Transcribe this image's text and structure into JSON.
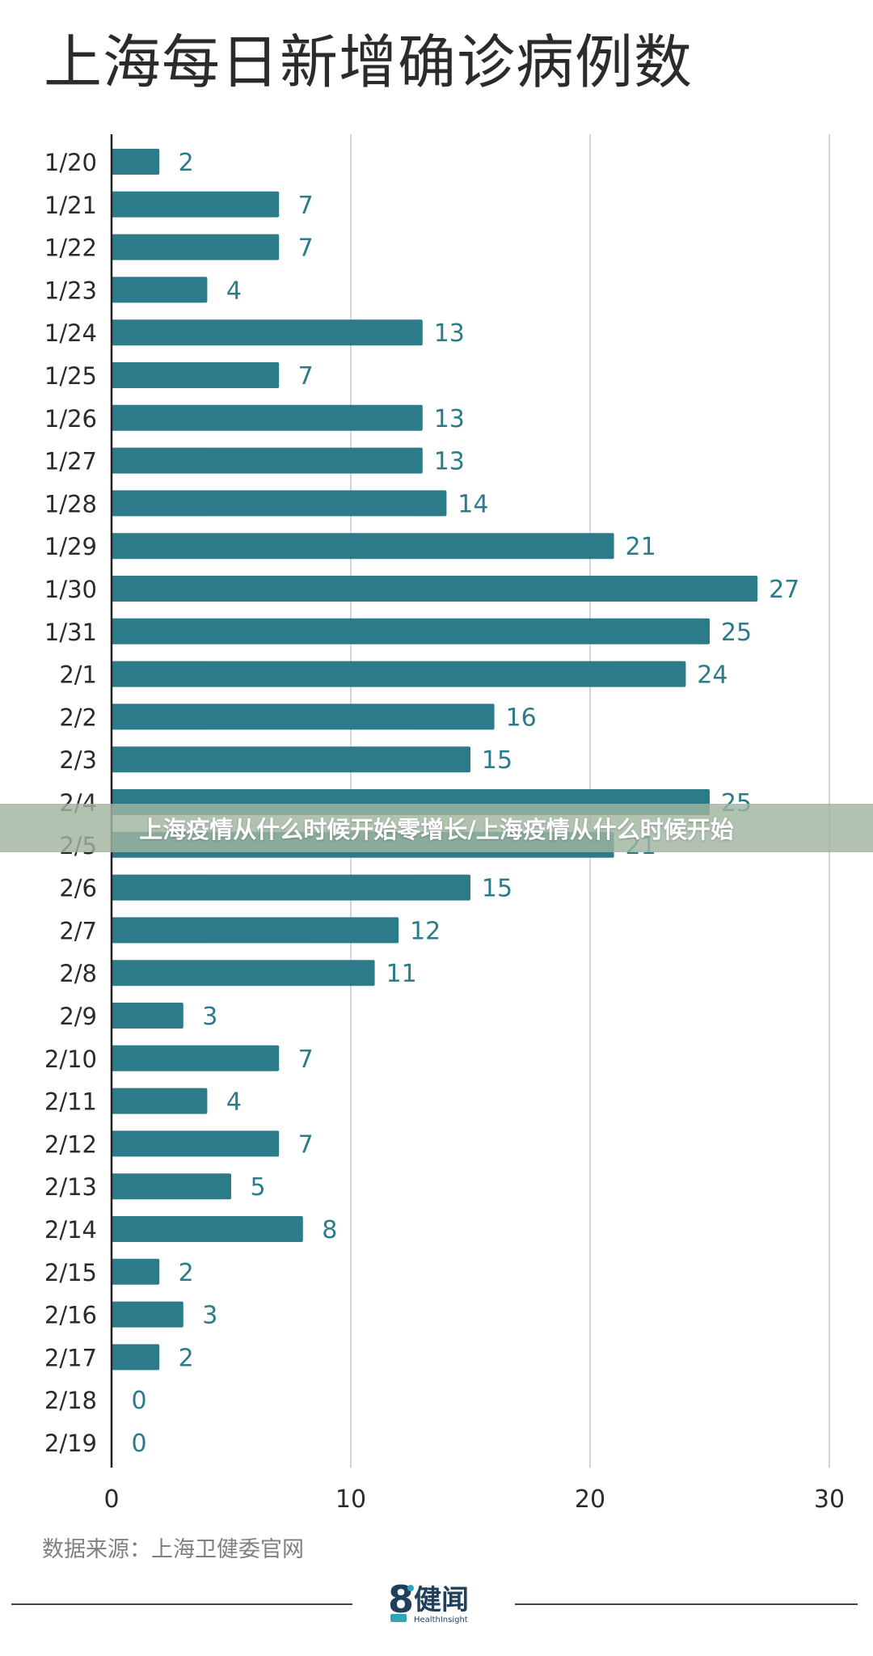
{
  "chart_data": {
    "type": "bar",
    "orientation": "horizontal",
    "title": "上海每日新增确诊病例数",
    "xlabel": "",
    "ylabel": "",
    "xlim": [
      0,
      30
    ],
    "xticks": [
      0,
      10,
      20,
      30
    ],
    "grid": true,
    "bar_color": "#2b7b8a",
    "label_color": "#2b7b8a",
    "categories": [
      "1/20",
      "1/21",
      "1/22",
      "1/23",
      "1/24",
      "1/25",
      "1/26",
      "1/27",
      "1/28",
      "1/29",
      "1/30",
      "1/31",
      "2/1",
      "2/2",
      "2/3",
      "2/4",
      "2/5",
      "2/6",
      "2/7",
      "2/8",
      "2/9",
      "2/10",
      "2/11",
      "2/12",
      "2/13",
      "2/14",
      "2/15",
      "2/16",
      "2/17",
      "2/18",
      "2/19"
    ],
    "values": [
      2,
      7,
      7,
      4,
      13,
      7,
      13,
      13,
      14,
      21,
      27,
      25,
      24,
      16,
      15,
      25,
      21,
      15,
      12,
      11,
      3,
      7,
      4,
      7,
      5,
      8,
      2,
      3,
      2,
      0,
      0
    ]
  },
  "source_note": "数据来源：上海卫健委官网",
  "logo": {
    "mark": "8",
    "name": "健闻",
    "subtitle": "HealthInsight"
  },
  "overlay_text": "上海疫情从什么时候开始零增长/上海疫情从什么时候开始"
}
